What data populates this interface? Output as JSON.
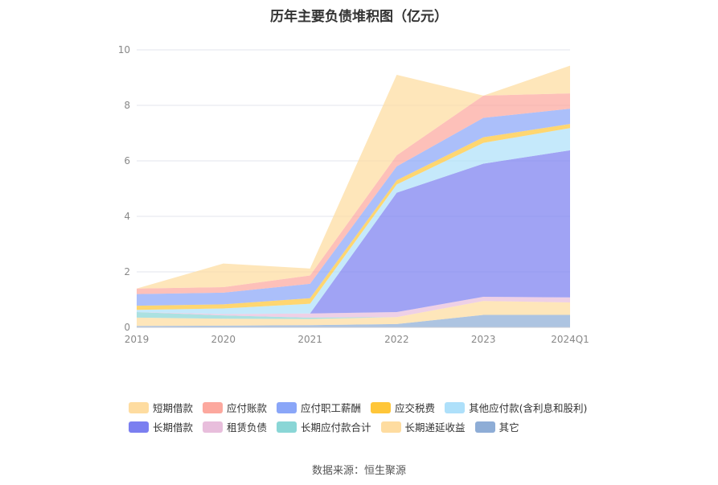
{
  "chart_data": {
    "type": "area",
    "title": "历年主要负债堆积图（亿元）",
    "categories": [
      "2019",
      "2020",
      "2021",
      "2022",
      "2023",
      "2024Q1"
    ],
    "ylim": [
      0,
      10
    ],
    "yticks": [
      "0",
      "2",
      "4",
      "6",
      "8",
      "10"
    ],
    "grid": true,
    "legend_position": "bottom",
    "series": [
      {
        "name": "其它",
        "color": "#8eadd6",
        "values": [
          0.05,
          0.06,
          0.08,
          0.12,
          0.45,
          0.45
        ]
      },
      {
        "name": "长期递延收益",
        "color": "#fedca0",
        "values": [
          0.3,
          0.25,
          0.22,
          0.25,
          0.5,
          0.45
        ]
      },
      {
        "name": "长期应付款合计",
        "color": "#8ad6d6",
        "values": [
          0.2,
          0.12,
          0.05,
          0.0,
          0.0,
          0.0
        ]
      },
      {
        "name": "租赁负债",
        "color": "#e8bedc",
        "values": [
          0.0,
          0.05,
          0.15,
          0.18,
          0.15,
          0.18
        ]
      },
      {
        "name": "长期借款",
        "color": "#7b7ff0",
        "values": [
          0.0,
          0.0,
          0.0,
          4.3,
          4.8,
          5.3
        ]
      },
      {
        "name": "其他应付款(含利息和股利)",
        "color": "#aee0fa",
        "values": [
          0.08,
          0.2,
          0.35,
          0.3,
          0.75,
          0.8
        ]
      },
      {
        "name": "应交税费",
        "color": "#ffc639",
        "values": [
          0.15,
          0.15,
          0.2,
          0.15,
          0.2,
          0.15
        ]
      },
      {
        "name": "应付职工薪酬",
        "color": "#8aa6f8",
        "values": [
          0.42,
          0.42,
          0.52,
          0.5,
          0.7,
          0.55
        ]
      },
      {
        "name": "应付账款",
        "color": "#fca89e",
        "values": [
          0.2,
          0.2,
          0.3,
          0.4,
          0.8,
          0.55
        ]
      },
      {
        "name": "短期借款",
        "color": "#fedca0",
        "values": [
          0.0,
          0.85,
          0.25,
          2.9,
          0.0,
          1.0
        ]
      }
    ]
  },
  "legend_rows": [
    [
      {
        "name": "短期借款",
        "color": "#fedca0"
      },
      {
        "name": "应付账款",
        "color": "#fca89e"
      },
      {
        "name": "应付职工薪酬",
        "color": "#8aa6f8"
      },
      {
        "name": "应交税费",
        "color": "#ffc639"
      },
      {
        "name": "其他应付款(含利息和股利)",
        "color": "#aee0fa"
      }
    ],
    [
      {
        "name": "长期借款",
        "color": "#7b7ff0"
      },
      {
        "name": "租赁负债",
        "color": "#e8bedc"
      },
      {
        "name": "长期应付款合计",
        "color": "#8ad6d6"
      },
      {
        "name": "长期递延收益",
        "color": "#fedca0"
      },
      {
        "name": "其它",
        "color": "#8eadd6"
      }
    ]
  ],
  "source": "数据来源：恒生聚源"
}
